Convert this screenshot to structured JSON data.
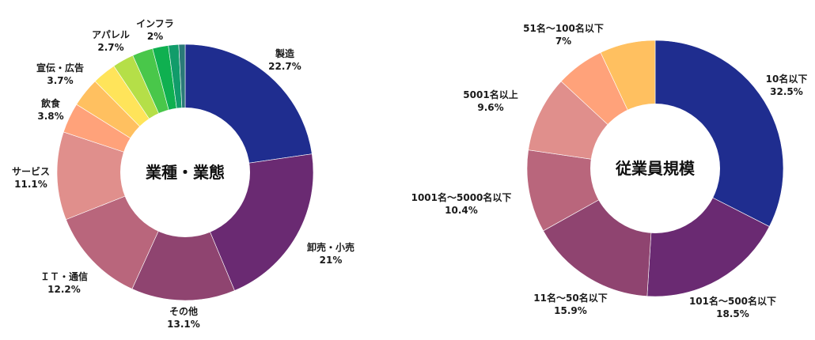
{
  "chart_data": [
    {
      "type": "pie",
      "title": "業種・業態",
      "slices": [
        {
          "label": "製造",
          "value": 22.7,
          "display": "22.7%",
          "color": "#1f2d8f"
        },
        {
          "label": "卸売・小売",
          "value": 21.0,
          "display": "21%",
          "color": "#6a2a72"
        },
        {
          "label": "その他",
          "value": 13.1,
          "display": "13.1%",
          "color": "#8f4470"
        },
        {
          "label": "ＩＴ・通信",
          "value": 12.2,
          "display": "12.2%",
          "color": "#b9667c"
        },
        {
          "label": "サービス",
          "value": 11.1,
          "display": "11.1%",
          "color": "#e08f8c"
        },
        {
          "label": "飲食",
          "value": 3.8,
          "display": "3.8%",
          "color": "#ffa27a"
        },
        {
          "label": "宣伝・広告",
          "value": 3.7,
          "display": "3.7%",
          "color": "#ffc060"
        },
        {
          "label": "",
          "value": 3.0,
          "display": "",
          "color": "#ffe45a"
        },
        {
          "label": "アパレル",
          "value": 2.7,
          "display": "2.7%",
          "color": "#b5df48"
        },
        {
          "label": "",
          "value": 2.6,
          "display": "",
          "color": "#49c74a"
        },
        {
          "label": "インフラ",
          "value": 2.0,
          "display": "2%",
          "color": "#0fb050"
        },
        {
          "label": "",
          "value": 1.3,
          "display": "",
          "color": "#119c6a"
        },
        {
          "label": "",
          "value": 0.8,
          "display": "",
          "color": "#2a7a78"
        }
      ]
    },
    {
      "type": "pie",
      "title": "従業員規模",
      "slices": [
        {
          "label": "10名以下",
          "value": 32.5,
          "display": "32.5%",
          "color": "#1f2d8f"
        },
        {
          "label": "101名～500名以下",
          "value": 18.5,
          "display": "18.5%",
          "color": "#6a2a72"
        },
        {
          "label": "11名～50名以下",
          "value": 15.9,
          "display": "15.9%",
          "color": "#8f4470"
        },
        {
          "label": "1001名～5000名以下",
          "value": 10.4,
          "display": "10.4%",
          "color": "#b9667c"
        },
        {
          "label": "5001名以上",
          "value": 9.6,
          "display": "9.6%",
          "color": "#e08f8c"
        },
        {
          "label": "",
          "value": 6.1,
          "display": "",
          "color": "#ffa27a"
        },
        {
          "label": "51名～100名以下",
          "value": 7.0,
          "display": "7%",
          "color": "#ffc060"
        }
      ]
    }
  ]
}
